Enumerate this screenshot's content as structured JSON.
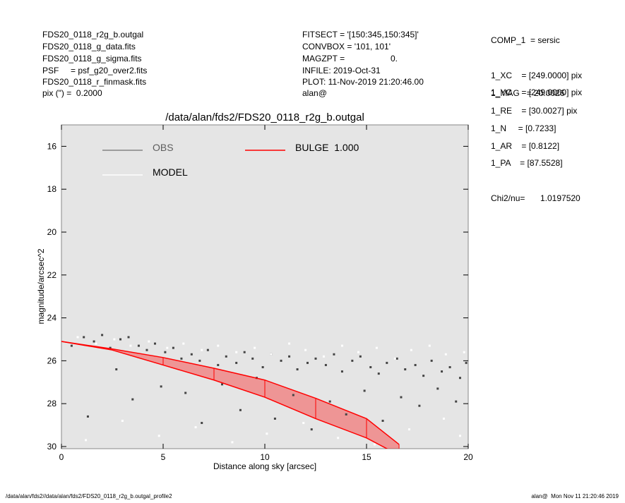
{
  "header": {
    "left": [
      "FDS20_0118_r2g_b.outgal",
      "FDS20_0118_g_data.fits",
      "FDS20_0118_g_sigma.fits",
      "PSF     = psf_g20_over2.fits",
      "FDS20_0118_r_finmask.fits",
      "pix (\") =  0.2000"
    ],
    "middle": [
      "FITSECT = '[150:345,150:345]'",
      "CONVBOX = '101, 101'",
      "MAGZPT =",
      "INFILE: 2019-Oct-31",
      "PLOT: 11-Nov-2019 21:20:46.00",
      "alan@"
    ],
    "magzpt_value": "0.",
    "right": [
      "COMP_1  = sersic",
      "1_XC    = [249.0000] pix",
      "1_YC    = [249.0000] pix",
      "1_MAG   = 20.0026",
      "1_RE    = [30.0027] pix",
      "1_N     = [0.7233]",
      "1_AR    = [0.8122]",
      "1_PA    = [87.5528]"
    ],
    "chi2_label": "Chi2/nu=",
    "chi2_value": "1.0197520"
  },
  "footer": {
    "left": "/data/alan/fds2//data/alan/fds2/FDS20_0118_r2g_b.outgal_profile2",
    "right": "alan@  Mon Nov 11 21:20:46 2019"
  },
  "chart_data": {
    "type": "scatter",
    "title": "/data/alan/fds2/FDS20_0118_r2g_b.outgal",
    "x_label": "Distance along sky [arcsec]",
    "y_label": "magnitude/arcsec^2",
    "xlim": [
      0,
      20
    ],
    "xticks": [
      0,
      5,
      10,
      15,
      20
    ],
    "ylim": [
      15,
      30.1
    ],
    "yticks": [
      16,
      18,
      20,
      22,
      24,
      26,
      28,
      30
    ],
    "y_inverted": true,
    "series": [
      {
        "name": "OBS",
        "color": "#444444",
        "kind": "points",
        "x": [
          0.5,
          1.1,
          1.6,
          2.0,
          2.4,
          2.9,
          3.3,
          3.8,
          4.2,
          4.6,
          5.1,
          5.5,
          5.9,
          6.4,
          6.8,
          7.2,
          7.7,
          8.1,
          8.6,
          9.0,
          9.4,
          9.9,
          10.3,
          10.8,
          11.2,
          11.6,
          12.1,
          12.5,
          13.0,
          13.4,
          13.8,
          14.3,
          14.7,
          15.2,
          15.6,
          16.0,
          16.5,
          16.9,
          17.4,
          17.8,
          18.2,
          18.7,
          19.1,
          19.6,
          19.9,
          1.3,
          2.7,
          3.5,
          4.9,
          6.1,
          6.9,
          7.9,
          8.8,
          9.6,
          10.5,
          11.4,
          12.3,
          13.2,
          14.0,
          14.9,
          15.8,
          16.7,
          17.6,
          18.5,
          19.4
        ],
        "values": [
          25.3,
          24.9,
          25.1,
          24.8,
          25.4,
          25.0,
          24.9,
          25.3,
          25.5,
          25.2,
          25.6,
          25.4,
          25.9,
          25.7,
          26.0,
          25.5,
          26.2,
          25.8,
          26.1,
          25.6,
          25.9,
          26.3,
          25.7,
          26.0,
          25.8,
          26.4,
          26.1,
          25.9,
          26.2,
          25.7,
          26.5,
          26.0,
          25.8,
          26.3,
          26.6,
          26.1,
          25.9,
          26.4,
          26.2,
          26.7,
          26.0,
          26.5,
          26.3,
          26.8,
          26.1,
          28.6,
          26.4,
          27.8,
          27.2,
          27.5,
          28.9,
          27.1,
          28.3,
          26.8,
          28.7,
          27.6,
          29.2,
          27.9,
          28.5,
          27.4,
          28.8,
          27.7,
          28.1,
          27.3,
          27.9
        ]
      },
      {
        "name": "MODEL",
        "color": "#ffffff",
        "kind": "points",
        "x": [
          0.8,
          1.7,
          2.6,
          3.4,
          4.3,
          5.2,
          6.0,
          6.9,
          7.7,
          8.6,
          9.5,
          10.3,
          11.2,
          12.0,
          12.9,
          13.8,
          14.6,
          15.5,
          16.4,
          17.2,
          18.1,
          18.9,
          19.8,
          1.2,
          3.0,
          4.8,
          6.6,
          8.4,
          10.1,
          11.9,
          13.6,
          15.4,
          17.1,
          18.8,
          19.6
        ],
        "values": [
          24.9,
          25.2,
          25.0,
          25.3,
          25.1,
          25.4,
          25.2,
          25.5,
          25.3,
          25.6,
          25.4,
          25.7,
          25.2,
          25.5,
          25.8,
          25.3,
          25.6,
          25.4,
          25.9,
          25.5,
          25.3,
          25.7,
          25.6,
          29.7,
          28.8,
          29.5,
          29.1,
          29.8,
          29.4,
          28.9,
          29.6,
          29.9,
          29.2,
          28.7,
          29.5
        ]
      },
      {
        "name": "BULGE  1.000",
        "color": "#ff0000",
        "kind": "band",
        "x": [
          0,
          2.5,
          5,
          7.5,
          10,
          12.5,
          15,
          16.6
        ],
        "values": [
          25.1,
          25.45,
          25.85,
          26.35,
          26.9,
          27.75,
          28.7,
          29.9
        ],
        "lower_values": [
          25.1,
          25.5,
          26.2,
          26.9,
          27.7,
          28.7,
          29.6,
          30.4
        ]
      }
    ]
  }
}
